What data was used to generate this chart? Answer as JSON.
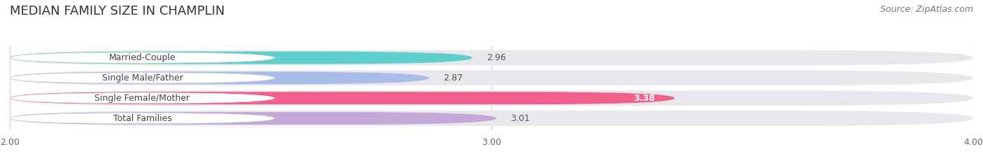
{
  "title": "MEDIAN FAMILY SIZE IN CHAMPLIN",
  "source": "Source: ZipAtlas.com",
  "categories": [
    "Married-Couple",
    "Single Male/Father",
    "Single Female/Mother",
    "Total Families"
  ],
  "values": [
    2.96,
    2.87,
    3.38,
    3.01
  ],
  "bar_colors": [
    "#5ecfca",
    "#aabce8",
    "#f0608a",
    "#c4a8d8"
  ],
  "value_inside": [
    false,
    false,
    true,
    false
  ],
  "xlim": [
    2.0,
    4.0
  ],
  "xticks": [
    2.0,
    3.0,
    4.0
  ],
  "xtick_labels": [
    "2.00",
    "3.00",
    "4.00"
  ],
  "background_color": "#ffffff",
  "bar_bg_color": "#e8e8ec",
  "title_fontsize": 13,
  "source_fontsize": 9,
  "label_fontsize": 9,
  "value_fontsize": 9
}
